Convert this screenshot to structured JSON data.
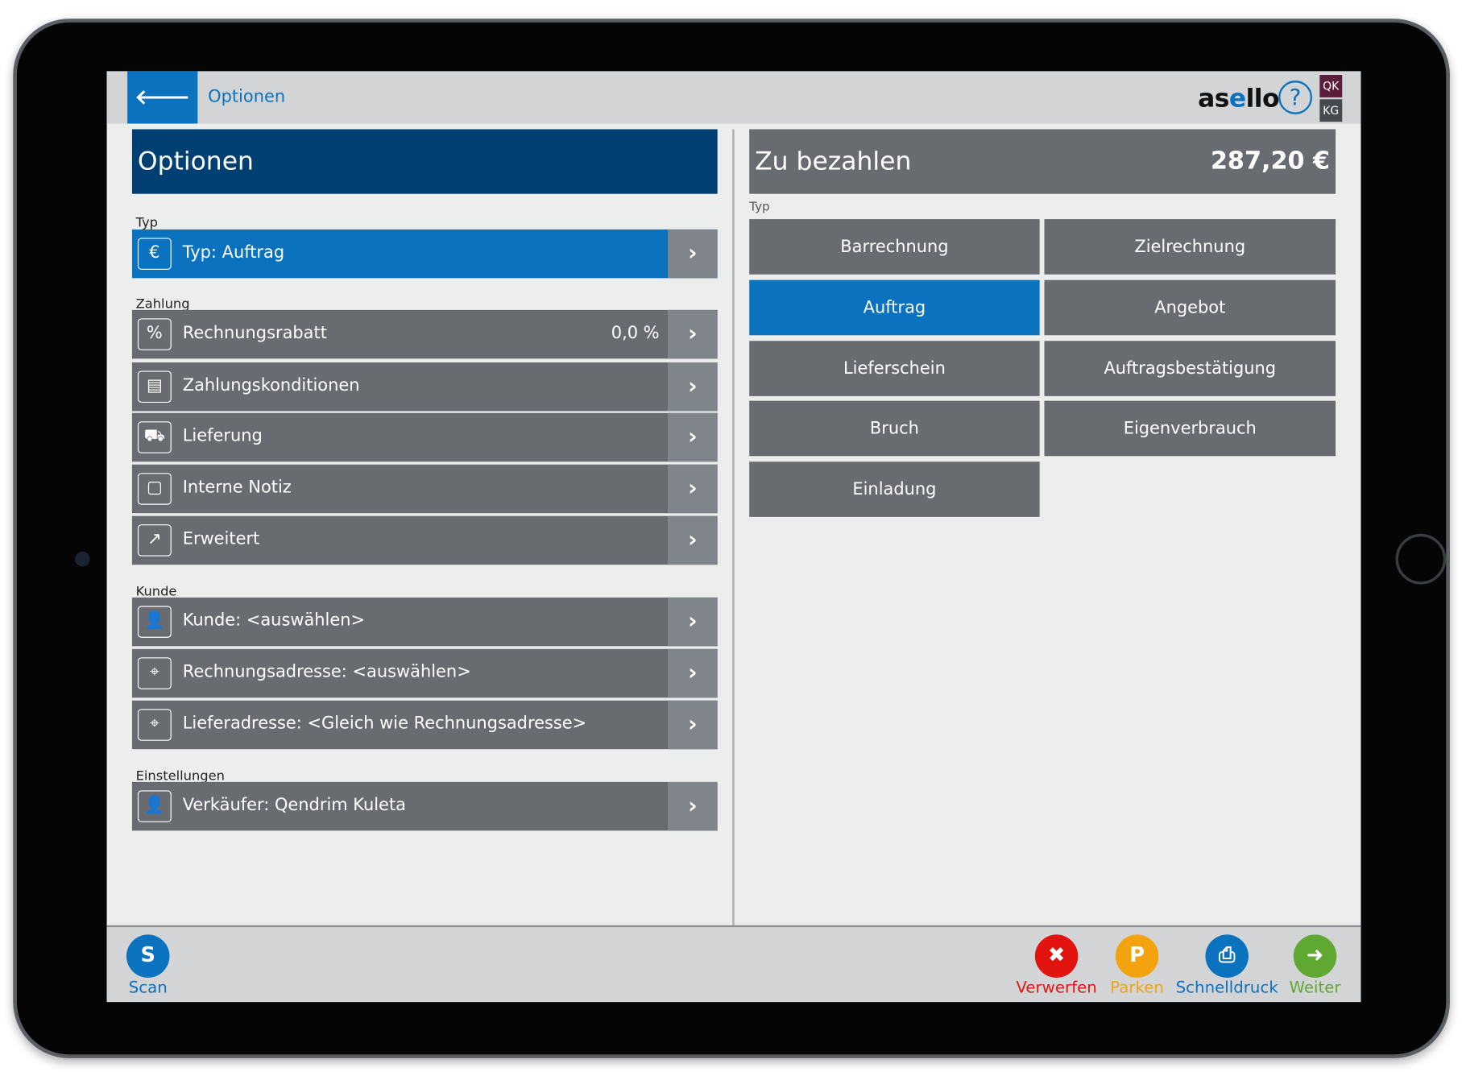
{
  "header": {
    "back_icon": "arrow-left-icon",
    "title": "Optionen",
    "logo": "asello",
    "help_icon": "question-circle-icon",
    "user_badges": [
      {
        "label": "QK",
        "color": "#5a1e3c"
      },
      {
        "label": "KG",
        "color": "#45484d"
      }
    ]
  },
  "left": {
    "title": "Optionen",
    "sections": [
      {
        "label": "Typ",
        "rows": [
          {
            "icon": "invoice-euro-icon",
            "label": "Typ: Auftrag",
            "selected": true
          }
        ]
      },
      {
        "label": "Zahlung",
        "rows": [
          {
            "icon": "percent-icon",
            "label": "Rechnungsrabatt",
            "value": "0,0 %"
          },
          {
            "icon": "wallet-icon",
            "label": "Zahlungskonditionen"
          },
          {
            "icon": "truck-icon",
            "label": "Lieferung"
          },
          {
            "icon": "note-icon",
            "label": "Interne Notiz"
          },
          {
            "icon": "arrow-circle-icon",
            "label": "Erweitert"
          }
        ]
      },
      {
        "label": "Kunde",
        "rows": [
          {
            "icon": "user-icon",
            "label": "Kunde: <auswählen>"
          },
          {
            "icon": "address-icon",
            "label": "Rechnungsadresse: <auswählen>"
          },
          {
            "icon": "address-icon",
            "label": "Lieferadresse: <Gleich wie Rechnungsadresse>"
          }
        ]
      },
      {
        "label": "Einstellungen",
        "rows": [
          {
            "icon": "seller-icon",
            "label": "Verkäufer: Qendrim Kuleta"
          }
        ]
      }
    ]
  },
  "right": {
    "title": "Zu bezahlen",
    "amount": "287,20 €",
    "type_label": "Typ",
    "types": [
      "Barrechnung",
      "Zielrechnung",
      "Auftrag",
      "Angebot",
      "Lieferschein",
      "Auftragsbestätigung",
      "Bruch",
      "Eigenverbrauch",
      "Einladung"
    ],
    "selected_type": "Auftrag"
  },
  "footer": {
    "scan": {
      "label": "Scan",
      "glyph": "S",
      "color": "#0a72bf"
    },
    "actions": [
      {
        "label": "Verwerfen",
        "glyph": "✖",
        "icon": "close-icon",
        "color": "#e2140f"
      },
      {
        "label": "Parken",
        "glyph": "P",
        "icon": "park-icon",
        "color": "#f2a30f"
      },
      {
        "label": "Schnelldruck",
        "glyph": "⎙",
        "icon": "print-icon",
        "color": "#0a72bf"
      },
      {
        "label": "Weiter",
        "glyph": "➜",
        "icon": "arrow-right-icon",
        "color": "#5fa832"
      }
    ]
  },
  "colors": {
    "accent": "#0a72bf",
    "title_bar": "#003f72",
    "row": "#686c71"
  }
}
